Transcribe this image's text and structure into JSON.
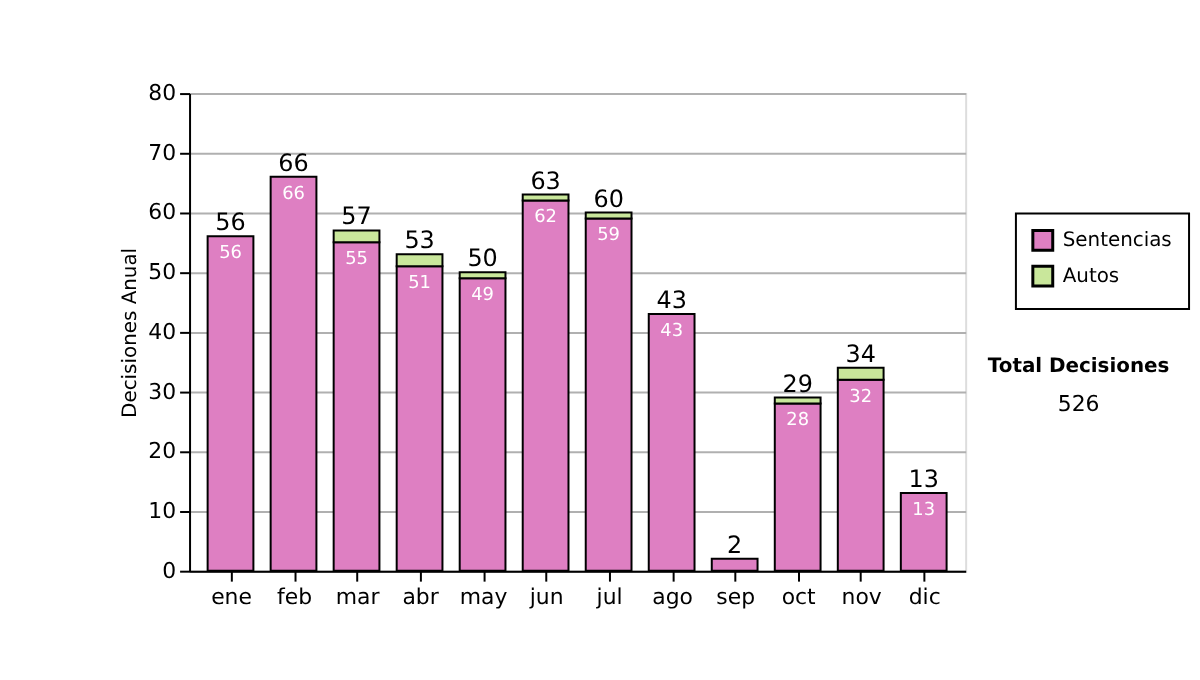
{
  "chart_data": {
    "type": "bar",
    "stacked": true,
    "ylabel": "Decisiones Anual",
    "categories": [
      "ene",
      "feb",
      "mar",
      "abr",
      "may",
      "jun",
      "jul",
      "ago",
      "sep",
      "oct",
      "nov",
      "dic"
    ],
    "series": [
      {
        "name": "Sentencias",
        "color": "#de7fc2",
        "values": [
          56,
          66,
          55,
          51,
          49,
          62,
          59,
          43,
          2,
          28,
          32,
          13
        ],
        "value_labels": [
          "56",
          "66",
          "55",
          "51",
          "49",
          "62",
          "59",
          "43",
          null,
          "28",
          "32",
          "13"
        ]
      },
      {
        "name": "Autos",
        "color": "#c9e79b",
        "values": [
          null,
          null,
          2,
          2,
          1,
          1,
          1,
          null,
          null,
          1,
          2,
          null
        ]
      }
    ],
    "totals": [
      "56",
      "66",
      "57",
      "53",
      "50",
      "63",
      "60",
      "43",
      "2",
      "29",
      "34",
      "13"
    ],
    "ylim": [
      0,
      80
    ],
    "yticks": [
      0,
      10,
      20,
      30,
      40,
      50,
      60,
      70,
      80
    ],
    "grid": "y",
    "legend": "right",
    "annotations": [
      "Total Decisiones",
      "526"
    ]
  }
}
